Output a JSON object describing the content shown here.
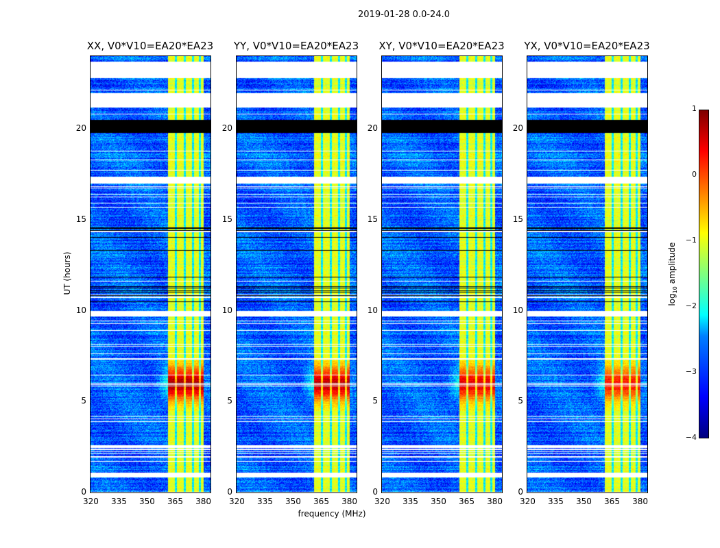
{
  "suptitle": "2019-01-28 0.0-24.0",
  "chart_data": {
    "type": "heatmap",
    "xlabel": "frequency (MHz)",
    "ylabel": "UT (hours)",
    "xlim": [
      320,
      384
    ],
    "ylim": [
      0,
      24
    ],
    "xticks": [
      320,
      335,
      350,
      365,
      380
    ],
    "yticks": [
      0,
      5,
      10,
      15,
      20
    ],
    "panels": [
      {
        "title": "XX, V0*V10=EA20*EA23",
        "peak": 0.8
      },
      {
        "title": "YY, V0*V10=EA20*EA23",
        "peak": 0.7
      },
      {
        "title": "XY, V0*V10=EA20*EA23",
        "peak": 0.5
      },
      {
        "title": "YX, V0*V10=EA20*EA23",
        "peak": 0.3
      }
    ],
    "bright_band_mhz": [
      361,
      380
    ],
    "bright_event_ut": [
      4.5,
      7.5
    ],
    "flagged_ut_ranges": [
      [
        22.8,
        23.7
      ],
      [
        21.2,
        22.0
      ],
      [
        0.86,
        1.13
      ],
      [
        2.45,
        2.6
      ],
      [
        9.7,
        10.0
      ],
      [
        17.0,
        17.4
      ]
    ],
    "blank_ut_ranges": [
      [
        19.8,
        20.5
      ]
    ],
    "colorbar": {
      "label": "log10 amplitude",
      "label_main": "log",
      "label_sub": "10",
      "label_rest": " amplitude",
      "range": [
        -4,
        1
      ],
      "ticks": [
        1,
        0,
        -1,
        -2,
        -3,
        -4
      ],
      "colormap": "jet"
    }
  }
}
